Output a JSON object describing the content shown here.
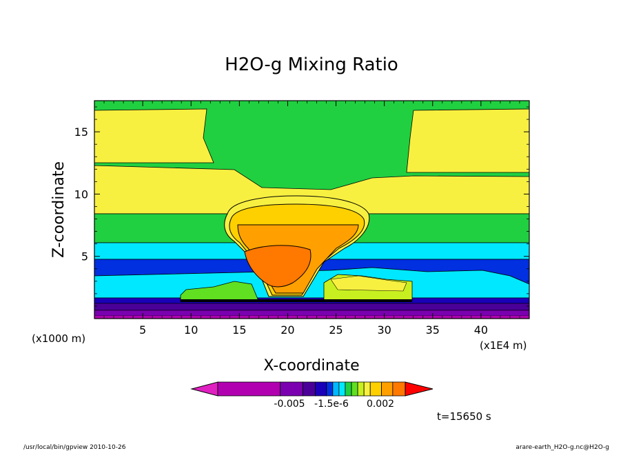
{
  "chart_data": {
    "type": "heatmap",
    "title": "H2O-g Mixing Ratio",
    "xlabel": "X-coordinate",
    "ylabel": "Z-coordinate",
    "x_unit": "(x1E4 m)",
    "y_unit": "(x1000 m)",
    "xlim": [
      0,
      45
    ],
    "ylim": [
      0,
      17.5
    ],
    "x_ticks": [
      "5",
      "10",
      "15",
      "20",
      "25",
      "30",
      "35",
      "40"
    ],
    "y_ticks": [
      "5",
      "10",
      "15"
    ],
    "colorbar": {
      "labels": [
        "-0.005",
        "-1.5e-6",
        "0.002"
      ],
      "colors": [
        "#e020c0",
        "#b000b0",
        "#7a00b0",
        "#4a0098",
        "#1a00b8",
        "#0030e0",
        "#00b8ff",
        "#00e8ff",
        "#20d040",
        "#60e020",
        "#c8f020",
        "#f8f040",
        "#ffd000",
        "#ffa000",
        "#ff7800",
        "#ff0000"
      ]
    },
    "layers": [
      {
        "level": "0.5",
        "color": "#7a00b0"
      },
      {
        "level": "1",
        "color": "#b000b0"
      },
      {
        "level": "1.5",
        "color": "#1a00b8"
      },
      {
        "level": "2.5",
        "color": "#00e8ff"
      },
      {
        "level": "4.5",
        "color": "#0030e0"
      },
      {
        "level": "5.8",
        "color": "#00e8ff"
      },
      {
        "level": "8.5",
        "color": "#20d040"
      },
      {
        "level": "10",
        "color": "#f8f040"
      },
      {
        "level": "12.5",
        "color": "#f8f040"
      },
      {
        "level": "16",
        "color": "#20d040"
      }
    ],
    "time_label": "t=15650 s"
  },
  "footer": {
    "left": "/usr/local/bin/gpview  2010-10-26",
    "right": "arare-earth_H2O-g.nc@H2O-g"
  }
}
